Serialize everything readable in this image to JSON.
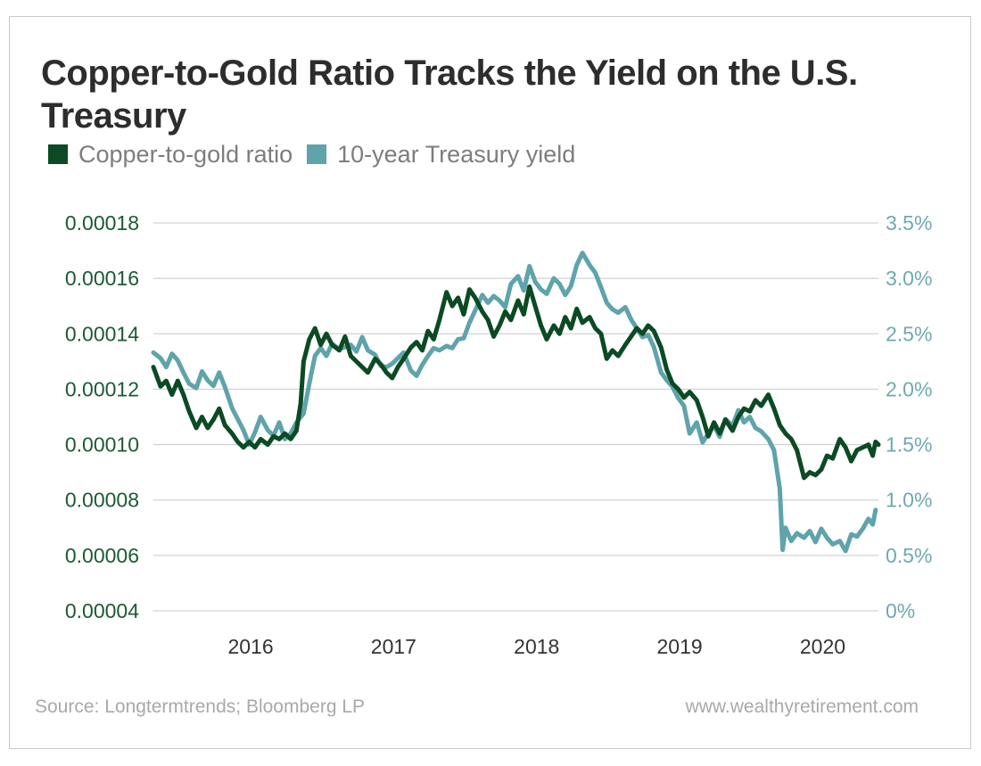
{
  "title": "Copper-to-Gold Ratio Tracks the Yield on the U.S. Treasury",
  "footer": {
    "source": "Source: Longtermtrends; Bloomberg LP",
    "website": "www.wealthyretirement.com"
  },
  "colors": {
    "copper_gold": "#0b4a23",
    "treasury": "#5fa3ab",
    "grid": "#c8c8c8"
  },
  "chart_data": {
    "type": "line",
    "title": "Copper-to-Gold Ratio Tracks the Yield on the U.S. Treasury",
    "grid": "horizontal",
    "legend_placement": "top-left",
    "xlim": [
      2015.33,
      2020.4
    ],
    "x_ticks": [
      {
        "value": 2016,
        "label": "2016"
      },
      {
        "value": 2017,
        "label": "2017"
      },
      {
        "value": 2018,
        "label": "2018"
      },
      {
        "value": 2019,
        "label": "2019"
      },
      {
        "value": 2020,
        "label": "2020"
      }
    ],
    "y_left": {
      "ylim": [
        4e-05,
        0.00018
      ],
      "ticks": [
        {
          "value": 0.00018,
          "label": "0.00018"
        },
        {
          "value": 0.00016,
          "label": "0.00016"
        },
        {
          "value": 0.00014,
          "label": "0.00014"
        },
        {
          "value": 0.00012,
          "label": "0.00012"
        },
        {
          "value": 0.0001,
          "label": "0.00010"
        },
        {
          "value": 8e-05,
          "label": "0.00008"
        },
        {
          "value": 6e-05,
          "label": "0.00006"
        },
        {
          "value": 4e-05,
          "label": "0.00004"
        }
      ]
    },
    "y_right": {
      "ylim": [
        0,
        3.5
      ],
      "unit": "%",
      "ticks": [
        {
          "value": 3.5,
          "label": "3.5%"
        },
        {
          "value": 3.0,
          "label": "3.0%"
        },
        {
          "value": 2.5,
          "label": "2.5%"
        },
        {
          "value": 2.0,
          "label": "2.0%"
        },
        {
          "value": 1.5,
          "label": "1.5%"
        },
        {
          "value": 1.0,
          "label": "1.0%"
        },
        {
          "value": 0.5,
          "label": "0.5%"
        },
        {
          "value": 0,
          "label": "0%"
        }
      ]
    },
    "series": [
      {
        "name": "Copper-to-gold ratio",
        "axis": "left",
        "color": "#0b4a23",
        "points": [
          [
            2015.33,
            0.000128
          ],
          [
            2015.38,
            0.000121
          ],
          [
            2015.42,
            0.000123
          ],
          [
            2015.46,
            0.000118
          ],
          [
            2015.5,
            0.000123
          ],
          [
            2015.54,
            0.000118
          ],
          [
            2015.58,
            0.000112
          ],
          [
            2015.63,
            0.000106
          ],
          [
            2015.67,
            0.00011
          ],
          [
            2015.71,
            0.000106
          ],
          [
            2015.75,
            0.000109
          ],
          [
            2015.79,
            0.000113
          ],
          [
            2015.83,
            0.000107
          ],
          [
            2015.88,
            0.000104
          ],
          [
            2015.92,
            0.000101
          ],
          [
            2015.96,
            9.9e-05
          ],
          [
            2016.0,
            0.000101
          ],
          [
            2016.04,
            9.9e-05
          ],
          [
            2016.08,
            0.000102
          ],
          [
            2016.13,
            0.0001
          ],
          [
            2016.17,
            0.000103
          ],
          [
            2016.21,
            0.000102
          ],
          [
            2016.25,
            0.000104
          ],
          [
            2016.29,
            0.000102
          ],
          [
            2016.33,
            0.000105
          ],
          [
            2016.36,
            0.000115
          ],
          [
            2016.38,
            0.00013
          ],
          [
            2016.42,
            0.000138
          ],
          [
            2016.46,
            0.000142
          ],
          [
            2016.5,
            0.000136
          ],
          [
            2016.54,
            0.00014
          ],
          [
            2016.58,
            0.000136
          ],
          [
            2016.63,
            0.000134
          ],
          [
            2016.67,
            0.000139
          ],
          [
            2016.71,
            0.000132
          ],
          [
            2016.75,
            0.00013
          ],
          [
            2016.79,
            0.000128
          ],
          [
            2016.83,
            0.000126
          ],
          [
            2016.88,
            0.000131
          ],
          [
            2016.92,
            0.000129
          ],
          [
            2016.96,
            0.000126
          ],
          [
            2017.0,
            0.000124
          ],
          [
            2017.04,
            0.000128
          ],
          [
            2017.08,
            0.000131
          ],
          [
            2017.13,
            0.000135
          ],
          [
            2017.17,
            0.000137
          ],
          [
            2017.21,
            0.000134
          ],
          [
            2017.25,
            0.000141
          ],
          [
            2017.29,
            0.000138
          ],
          [
            2017.33,
            0.000145
          ],
          [
            2017.38,
            0.000155
          ],
          [
            2017.42,
            0.00015
          ],
          [
            2017.46,
            0.000153
          ],
          [
            2017.5,
            0.000147
          ],
          [
            2017.54,
            0.000156
          ],
          [
            2017.58,
            0.000153
          ],
          [
            2017.63,
            0.000148
          ],
          [
            2017.67,
            0.000145
          ],
          [
            2017.71,
            0.000139
          ],
          [
            2017.75,
            0.000143
          ],
          [
            2017.79,
            0.000148
          ],
          [
            2017.83,
            0.000145
          ],
          [
            2017.88,
            0.000152
          ],
          [
            2017.92,
            0.000147
          ],
          [
            2017.96,
            0.000157
          ],
          [
            2018.0,
            0.00015
          ],
          [
            2018.04,
            0.000143
          ],
          [
            2018.08,
            0.000138
          ],
          [
            2018.13,
            0.000143
          ],
          [
            2018.17,
            0.00014
          ],
          [
            2018.21,
            0.000146
          ],
          [
            2018.25,
            0.000142
          ],
          [
            2018.29,
            0.000149
          ],
          [
            2018.33,
            0.000144
          ],
          [
            2018.38,
            0.000146
          ],
          [
            2018.42,
            0.000142
          ],
          [
            2018.46,
            0.00014
          ],
          [
            2018.5,
            0.000131
          ],
          [
            2018.54,
            0.000134
          ],
          [
            2018.58,
            0.000132
          ],
          [
            2018.63,
            0.000136
          ],
          [
            2018.67,
            0.000139
          ],
          [
            2018.71,
            0.000142
          ],
          [
            2018.75,
            0.00014
          ],
          [
            2018.79,
            0.000143
          ],
          [
            2018.83,
            0.000141
          ],
          [
            2018.88,
            0.000135
          ],
          [
            2018.92,
            0.000127
          ],
          [
            2018.96,
            0.000122
          ],
          [
            2019.0,
            0.00012
          ],
          [
            2019.04,
            0.000117
          ],
          [
            2019.08,
            0.000119
          ],
          [
            2019.13,
            0.000116
          ],
          [
            2019.17,
            0.00011
          ],
          [
            2019.21,
            0.000103
          ],
          [
            2019.25,
            0.000108
          ],
          [
            2019.29,
            0.000104
          ],
          [
            2019.33,
            0.000109
          ],
          [
            2019.38,
            0.000105
          ],
          [
            2019.42,
            0.00011
          ],
          [
            2019.46,
            0.000113
          ],
          [
            2019.5,
            0.000112
          ],
          [
            2019.54,
            0.000116
          ],
          [
            2019.58,
            0.000114
          ],
          [
            2019.63,
            0.000118
          ],
          [
            2019.67,
            0.000113
          ],
          [
            2019.71,
            0.000107
          ],
          [
            2019.75,
            0.000104
          ],
          [
            2019.79,
            0.000102
          ],
          [
            2019.83,
            9.8e-05
          ],
          [
            2019.88,
            8.8e-05
          ],
          [
            2019.92,
            9e-05
          ],
          [
            2019.96,
            8.9e-05
          ],
          [
            2020.0,
            9.1e-05
          ],
          [
            2020.04,
            9.6e-05
          ],
          [
            2020.08,
            9.5e-05
          ],
          [
            2020.13,
            0.000102
          ],
          [
            2020.17,
            9.9e-05
          ],
          [
            2020.21,
            9.4e-05
          ],
          [
            2020.25,
            9.8e-05
          ],
          [
            2020.29,
            9.9e-05
          ],
          [
            2020.33,
            0.0001
          ],
          [
            2020.36,
            9.6e-05
          ],
          [
            2020.38,
            0.000101
          ],
          [
            2020.4,
            0.0001
          ]
        ]
      },
      {
        "name": "10-year Treasury yield",
        "axis": "right",
        "color": "#5fa3ab",
        "points": [
          [
            2015.33,
            2.33
          ],
          [
            2015.38,
            2.28
          ],
          [
            2015.42,
            2.2
          ],
          [
            2015.46,
            2.32
          ],
          [
            2015.5,
            2.26
          ],
          [
            2015.54,
            2.15
          ],
          [
            2015.58,
            2.05
          ],
          [
            2015.63,
            2.01
          ],
          [
            2015.67,
            2.16
          ],
          [
            2015.71,
            2.08
          ],
          [
            2015.75,
            2.03
          ],
          [
            2015.79,
            2.15
          ],
          [
            2015.83,
            2.02
          ],
          [
            2015.88,
            1.83
          ],
          [
            2015.92,
            1.73
          ],
          [
            2015.96,
            1.63
          ],
          [
            2016.0,
            1.5
          ],
          [
            2016.04,
            1.61
          ],
          [
            2016.08,
            1.75
          ],
          [
            2016.13,
            1.63
          ],
          [
            2016.17,
            1.58
          ],
          [
            2016.21,
            1.7
          ],
          [
            2016.25,
            1.55
          ],
          [
            2016.29,
            1.6
          ],
          [
            2016.33,
            1.7
          ],
          [
            2016.38,
            1.78
          ],
          [
            2016.42,
            2.05
          ],
          [
            2016.46,
            2.3
          ],
          [
            2016.5,
            2.37
          ],
          [
            2016.54,
            2.3
          ],
          [
            2016.58,
            2.41
          ],
          [
            2016.63,
            2.36
          ],
          [
            2016.67,
            2.38
          ],
          [
            2016.71,
            2.4
          ],
          [
            2016.75,
            2.34
          ],
          [
            2016.79,
            2.47
          ],
          [
            2016.83,
            2.35
          ],
          [
            2016.88,
            2.31
          ],
          [
            2016.92,
            2.21
          ],
          [
            2016.96,
            2.2
          ],
          [
            2017.0,
            2.23
          ],
          [
            2017.04,
            2.28
          ],
          [
            2017.08,
            2.33
          ],
          [
            2017.13,
            2.17
          ],
          [
            2017.17,
            2.12
          ],
          [
            2017.21,
            2.22
          ],
          [
            2017.25,
            2.3
          ],
          [
            2017.29,
            2.37
          ],
          [
            2017.33,
            2.35
          ],
          [
            2017.38,
            2.39
          ],
          [
            2017.42,
            2.37
          ],
          [
            2017.46,
            2.45
          ],
          [
            2017.5,
            2.46
          ],
          [
            2017.54,
            2.6
          ],
          [
            2017.58,
            2.71
          ],
          [
            2017.63,
            2.85
          ],
          [
            2017.67,
            2.78
          ],
          [
            2017.71,
            2.84
          ],
          [
            2017.75,
            2.8
          ],
          [
            2017.79,
            2.74
          ],
          [
            2017.83,
            2.95
          ],
          [
            2017.88,
            3.02
          ],
          [
            2017.92,
            2.89
          ],
          [
            2017.96,
            3.11
          ],
          [
            2018.0,
            2.97
          ],
          [
            2018.04,
            2.9
          ],
          [
            2018.08,
            2.86
          ],
          [
            2018.13,
            3.0
          ],
          [
            2018.17,
            2.95
          ],
          [
            2018.21,
            2.85
          ],
          [
            2018.25,
            2.93
          ],
          [
            2018.29,
            3.12
          ],
          [
            2018.33,
            3.23
          ],
          [
            2018.38,
            3.12
          ],
          [
            2018.42,
            3.05
          ],
          [
            2018.46,
            2.92
          ],
          [
            2018.5,
            2.78
          ],
          [
            2018.54,
            2.72
          ],
          [
            2018.58,
            2.69
          ],
          [
            2018.63,
            2.74
          ],
          [
            2018.67,
            2.63
          ],
          [
            2018.71,
            2.55
          ],
          [
            2018.75,
            2.47
          ],
          [
            2018.79,
            2.49
          ],
          [
            2018.83,
            2.38
          ],
          [
            2018.88,
            2.15
          ],
          [
            2018.92,
            2.08
          ],
          [
            2018.96,
            2.02
          ],
          [
            2019.0,
            1.92
          ],
          [
            2019.04,
            1.85
          ],
          [
            2019.08,
            1.6
          ],
          [
            2019.13,
            1.7
          ],
          [
            2019.17,
            1.52
          ],
          [
            2019.21,
            1.6
          ],
          [
            2019.25,
            1.67
          ],
          [
            2019.29,
            1.57
          ],
          [
            2019.33,
            1.73
          ],
          [
            2019.38,
            1.67
          ],
          [
            2019.42,
            1.81
          ],
          [
            2019.46,
            1.7
          ],
          [
            2019.5,
            1.75
          ],
          [
            2019.54,
            1.65
          ],
          [
            2019.58,
            1.62
          ],
          [
            2019.63,
            1.55
          ],
          [
            2019.67,
            1.45
          ],
          [
            2019.71,
            1.1
          ],
          [
            2019.73,
            0.55
          ],
          [
            2019.75,
            0.75
          ],
          [
            2019.79,
            0.63
          ],
          [
            2019.83,
            0.7
          ],
          [
            2019.88,
            0.66
          ],
          [
            2019.92,
            0.72
          ],
          [
            2019.96,
            0.62
          ],
          [
            2020.0,
            0.74
          ],
          [
            2020.04,
            0.66
          ],
          [
            2020.08,
            0.6
          ],
          [
            2020.13,
            0.63
          ],
          [
            2020.17,
            0.54
          ],
          [
            2020.21,
            0.69
          ],
          [
            2020.25,
            0.67
          ],
          [
            2020.29,
            0.74
          ],
          [
            2020.33,
            0.83
          ],
          [
            2020.36,
            0.78
          ],
          [
            2020.38,
            0.91
          ]
        ]
      }
    ]
  }
}
